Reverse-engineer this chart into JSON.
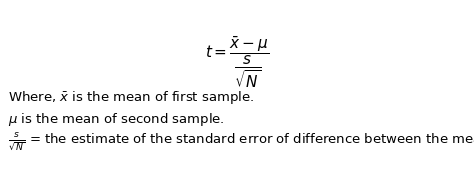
{
  "background_color": "#ffffff",
  "formula_fontsize": 11,
  "body_fontsize": 9.5,
  "line1_text_pre": "Where, ",
  "line1_math": "$\\bar{x}$",
  "line1_text_post": " is the mean of first sample.",
  "line2_text": "$\\mu$ is the mean of second sample.",
  "line3_math": "$\\frac{s}{\\sqrt{N}}$",
  "line3_text": " = the estimate of the standard error of difference between the means."
}
